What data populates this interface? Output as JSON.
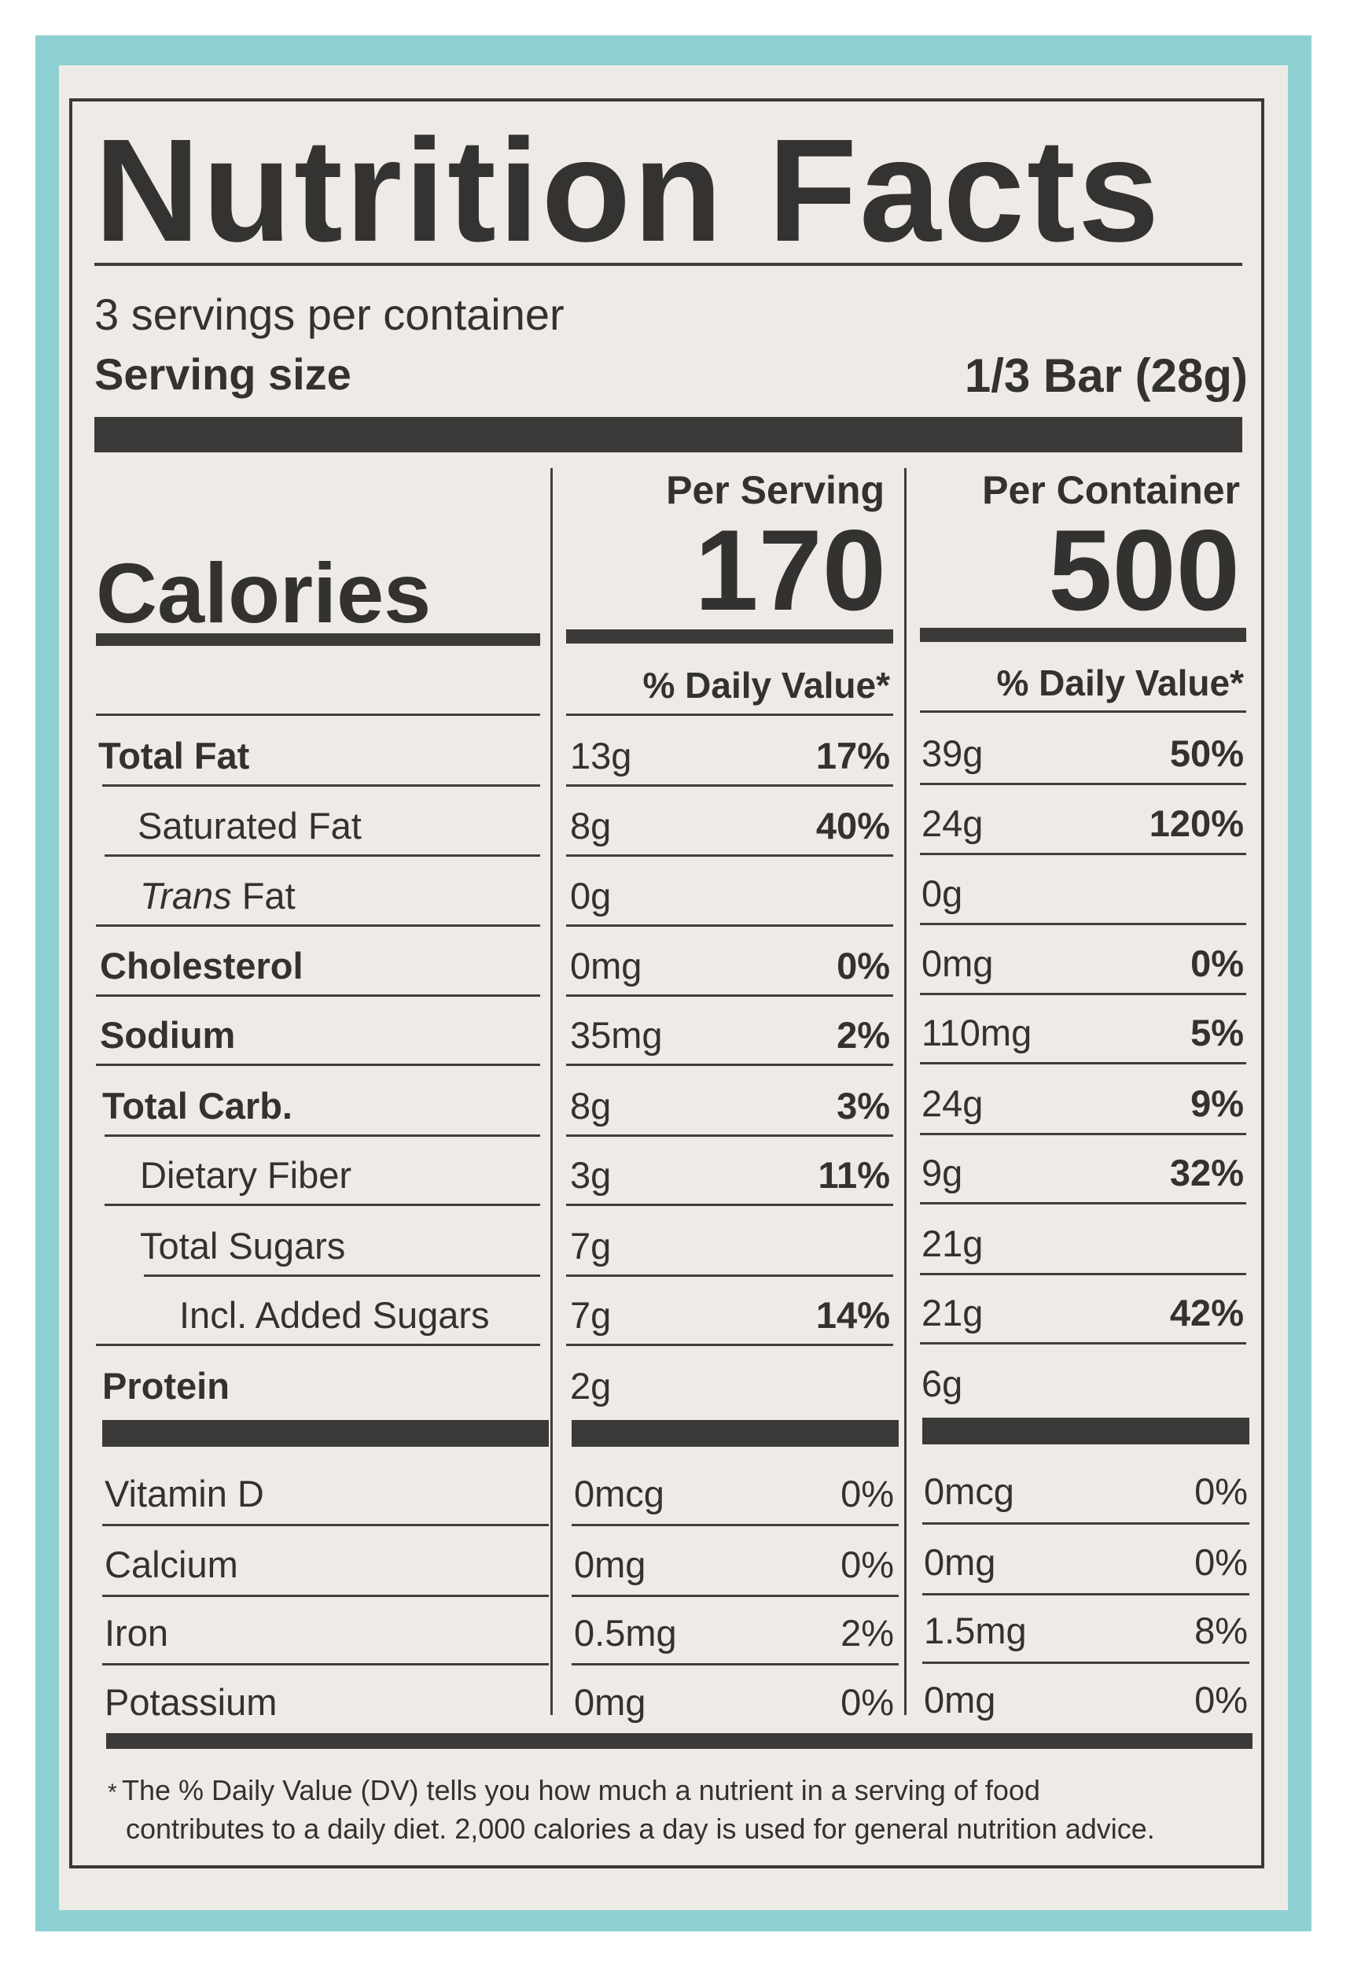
{
  "title": "Nutrition Facts",
  "servings_per_container": "3 servings per container",
  "serving_size": {
    "label": "Serving size",
    "value": "1/3 Bar (28g)"
  },
  "columns": {
    "per_serving": "Per Serving",
    "per_container": "Per Container"
  },
  "calories": {
    "label": "Calories",
    "per_serving": "170",
    "per_container": "500"
  },
  "daily_value_header": "% Daily Value*",
  "nutrients": [
    {
      "name": "Total Fat",
      "bold": true,
      "s_amt": "13g",
      "s_pct": "17%",
      "c_amt": "39g",
      "c_pct": "50%"
    },
    {
      "name": "Saturated Fat",
      "bold": false,
      "s_amt": "8g",
      "s_pct": "40%",
      "c_amt": "24g",
      "c_pct": "120%"
    },
    {
      "name_italic": "Trans",
      "name": " Fat",
      "bold": false,
      "s_amt": "0g",
      "s_pct": "",
      "c_amt": "0g",
      "c_pct": ""
    },
    {
      "name": "Cholesterol",
      "bold": true,
      "s_amt": "0mg",
      "s_pct": "0%",
      "c_amt": "0mg",
      "c_pct": "0%"
    },
    {
      "name": "Sodium",
      "bold": true,
      "s_amt": "35mg",
      "s_pct": "2%",
      "c_amt": "110mg",
      "c_pct": "5%"
    },
    {
      "name": "Total Carb.",
      "bold": true,
      "s_amt": "8g",
      "s_pct": "3%",
      "c_amt": "24g",
      "c_pct": "9%"
    },
    {
      "name": "Dietary Fiber",
      "bold": false,
      "s_amt": "3g",
      "s_pct": "11%",
      "c_amt": "9g",
      "c_pct": "32%"
    },
    {
      "name": "Total Sugars",
      "bold": false,
      "s_amt": "7g",
      "s_pct": "",
      "c_amt": "21g",
      "c_pct": ""
    },
    {
      "name": "Incl. Added Sugars",
      "bold": false,
      "s_amt": "7g",
      "s_pct": "14%",
      "c_amt": "21g",
      "c_pct": "42%"
    },
    {
      "name": "Protein",
      "bold": true,
      "s_amt": "2g",
      "s_pct": "",
      "c_amt": "6g",
      "c_pct": ""
    }
  ],
  "vitamins": [
    {
      "name": "Vitamin D",
      "s_amt": "0mcg",
      "s_pct": "0%",
      "c_amt": "0mcg",
      "c_pct": "0%"
    },
    {
      "name": "Calcium",
      "s_amt": "0mg",
      "s_pct": "0%",
      "c_amt": "0mg",
      "c_pct": "0%"
    },
    {
      "name": "Iron",
      "s_amt": "0.5mg",
      "s_pct": "2%",
      "c_amt": "1.5mg",
      "c_pct": "8%"
    },
    {
      "name": "Potassium",
      "s_amt": "0mg",
      "s_pct": "0%",
      "c_amt": "0mg",
      "c_pct": "0%"
    }
  ],
  "footnote": {
    "star": "*",
    "line1": "The % Daily Value (DV) tells you how much a nutrient in a serving of food",
    "line2": "contributes to a daily diet. 2,000 calories a day is used for general nutrition advice."
  }
}
